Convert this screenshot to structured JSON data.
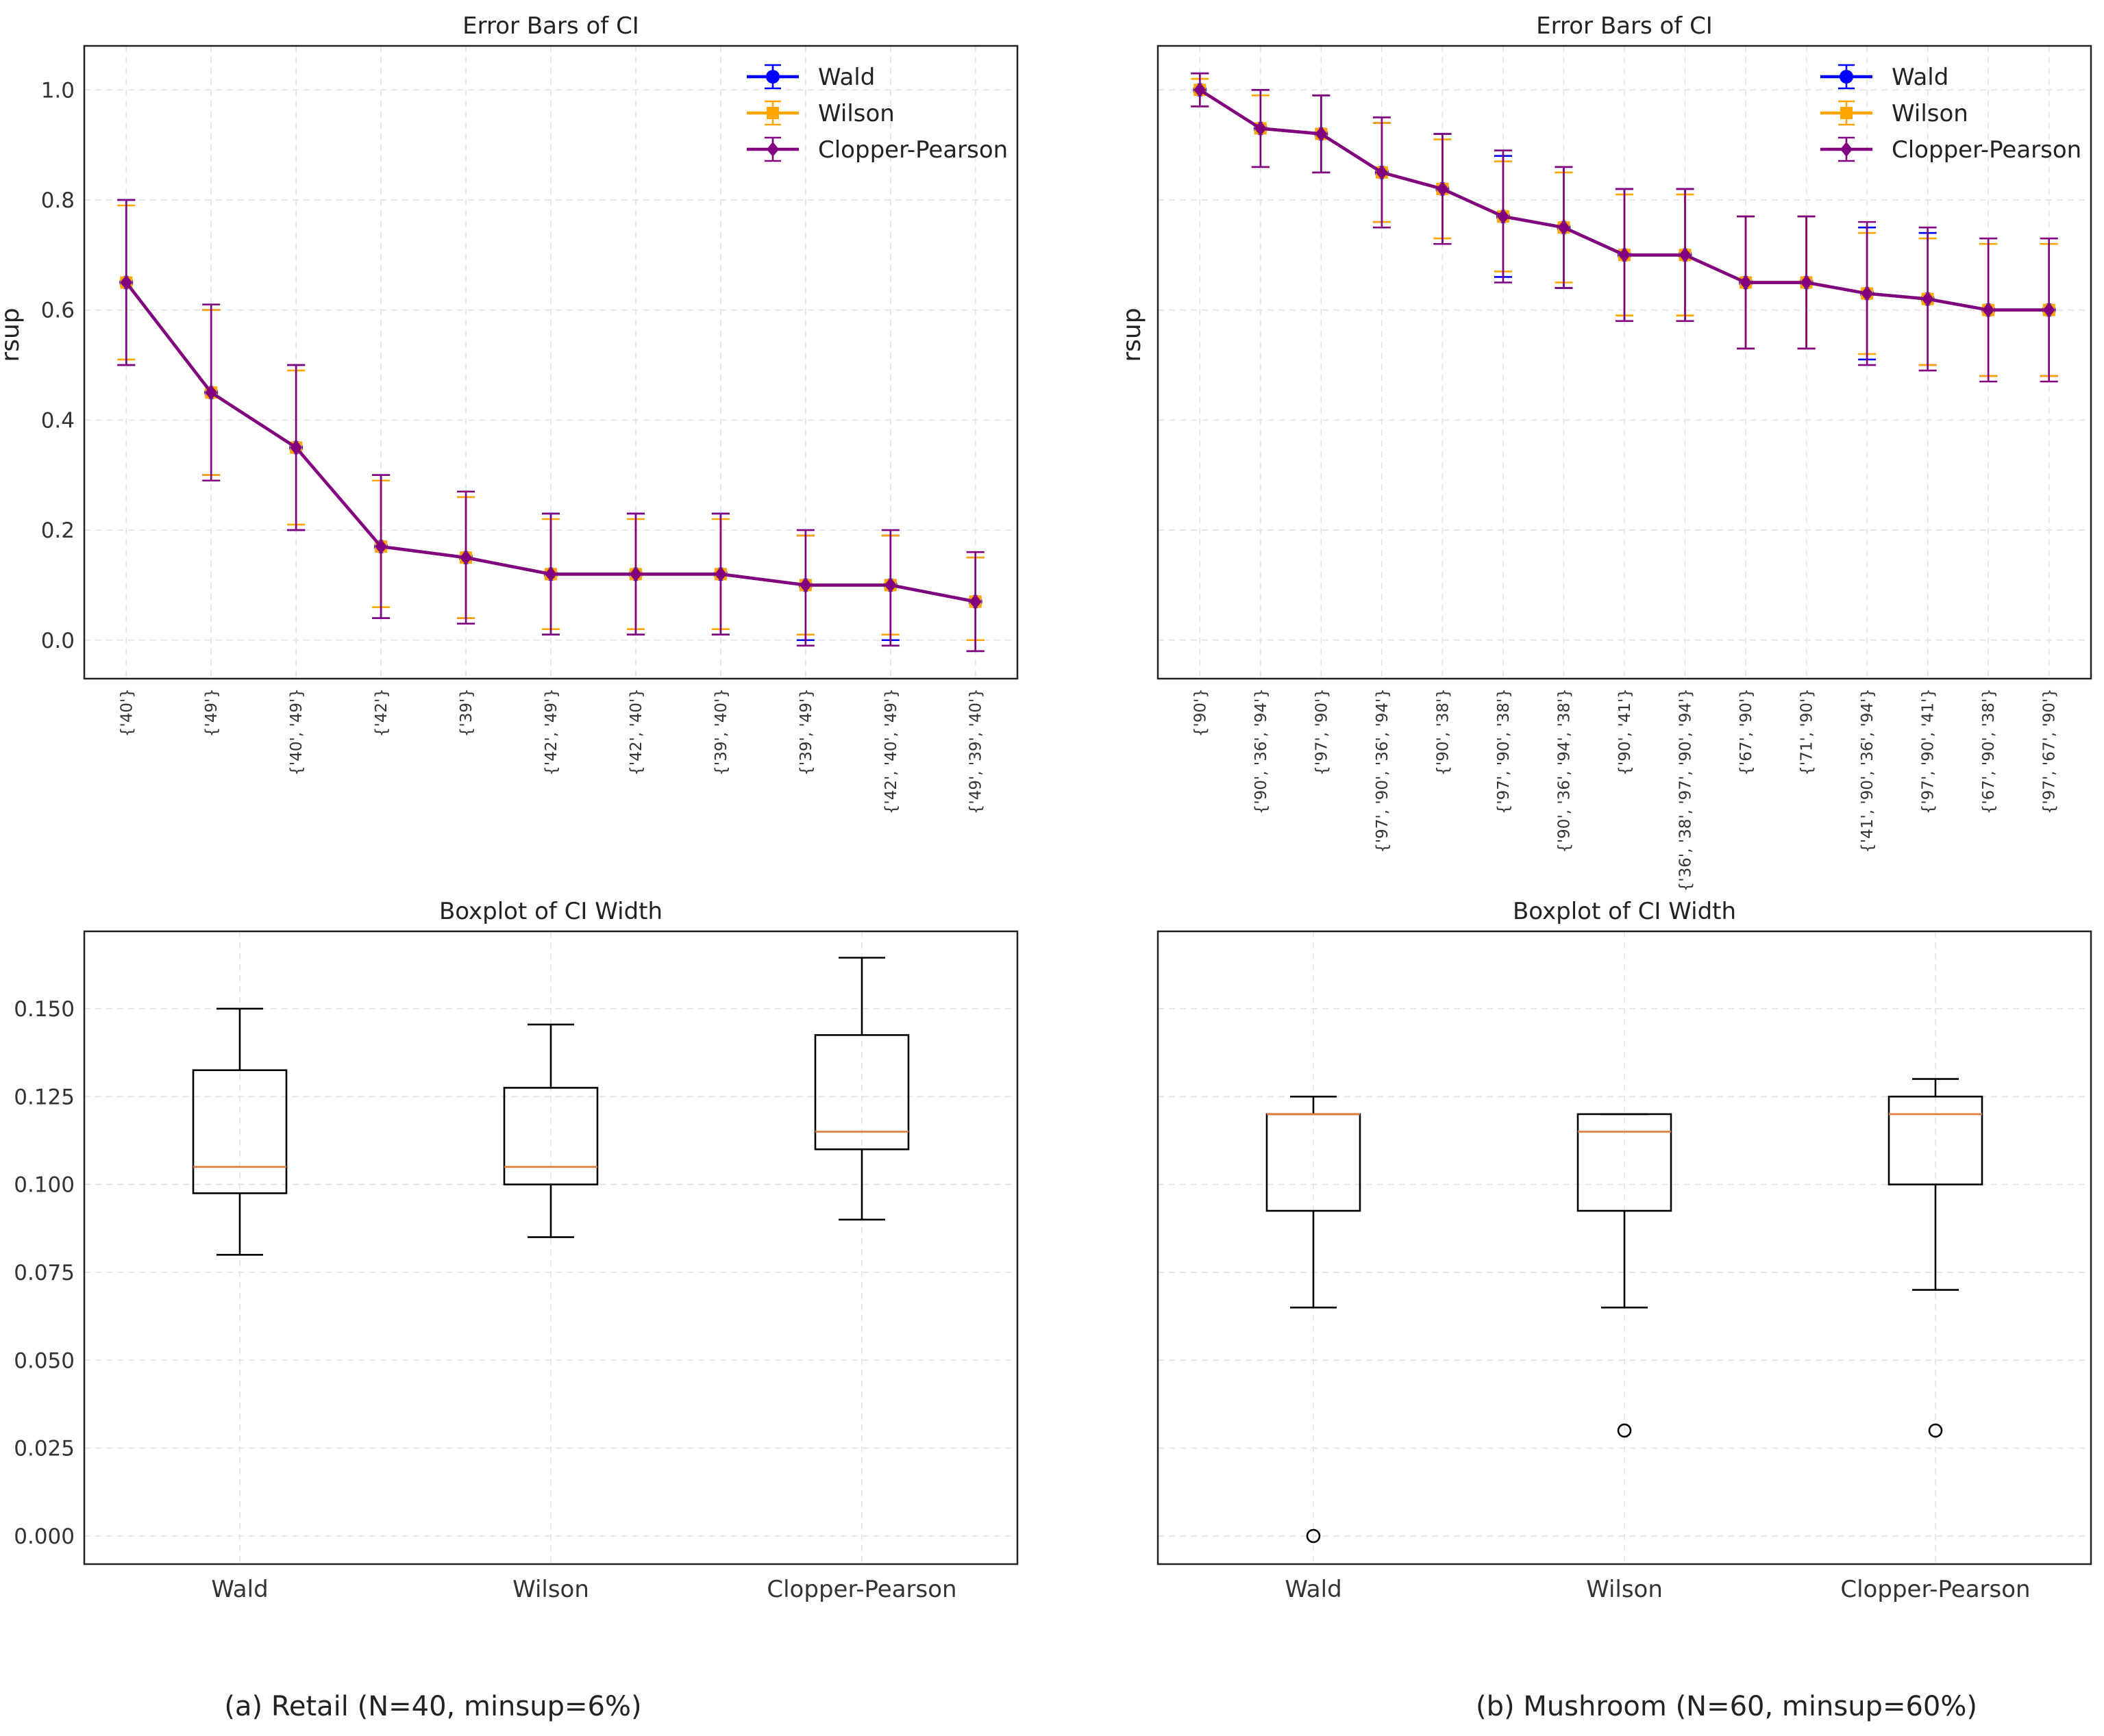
{
  "colors": {
    "wald": "#0000ff",
    "wilson": "#ffa500",
    "cp": "#800080",
    "median": "#e07b39",
    "box": "#000000"
  },
  "chart_data": [
    {
      "type": "line",
      "title": "Error Bars of CI",
      "ylabel": "rsup",
      "xlabel": "",
      "ylim": [
        -0.07,
        1.08
      ],
      "yticks": [
        "0.0",
        "0.2",
        "0.4",
        "0.6",
        "0.8",
        "1.0"
      ],
      "show_yticks": true,
      "grid": true,
      "legend": "top-right",
      "categories": [
        "{'40'}",
        "{'49'}",
        "{'40', '49'}",
        "{'42'}",
        "{'39'}",
        "{'42', '49'}",
        "{'42', '40'}",
        "{'39', '40'}",
        "{'39', '49'}",
        "{'42', '40', '49'}",
        "{'49', '39', '40'}"
      ],
      "series": [
        {
          "name": "Wald",
          "values": [
            0.65,
            0.45,
            0.35,
            0.17,
            0.15,
            0.12,
            0.12,
            0.12,
            0.1,
            0.1,
            0.07
          ],
          "lower": [
            0.5,
            0.3,
            0.2,
            0.04,
            0.04,
            0.01,
            0.01,
            0.01,
            0.0,
            0.0,
            -0.02
          ],
          "upper": [
            0.8,
            0.6,
            0.5,
            0.3,
            0.26,
            0.23,
            0.23,
            0.23,
            0.19,
            0.19,
            0.15
          ]
        },
        {
          "name": "Wilson",
          "values": [
            0.65,
            0.45,
            0.35,
            0.17,
            0.15,
            0.12,
            0.12,
            0.12,
            0.1,
            0.1,
            0.07
          ],
          "lower": [
            0.51,
            0.3,
            0.21,
            0.06,
            0.04,
            0.02,
            0.02,
            0.02,
            0.01,
            0.01,
            0.0
          ],
          "upper": [
            0.79,
            0.6,
            0.49,
            0.29,
            0.26,
            0.22,
            0.22,
            0.22,
            0.19,
            0.19,
            0.15
          ]
        },
        {
          "name": "Clopper-Pearson",
          "values": [
            0.65,
            0.45,
            0.35,
            0.17,
            0.15,
            0.12,
            0.12,
            0.12,
            0.1,
            0.1,
            0.07
          ],
          "lower": [
            0.5,
            0.29,
            0.2,
            0.04,
            0.03,
            0.01,
            0.01,
            0.01,
            -0.01,
            -0.01,
            -0.02
          ],
          "upper": [
            0.8,
            0.61,
            0.5,
            0.3,
            0.27,
            0.23,
            0.23,
            0.23,
            0.2,
            0.2,
            0.16
          ]
        }
      ]
    },
    {
      "type": "line",
      "title": "Error Bars of CI",
      "ylabel": "rsup",
      "xlabel": "",
      "ylim": [
        -0.07,
        1.08
      ],
      "yticks": [],
      "show_yticks": false,
      "grid": true,
      "legend": "top-right",
      "categories": [
        "{'90'}",
        "{'90', '36', '94'}",
        "{'97', '90'}",
        "{'97', '90', '36', '94'}",
        "{'90', '38'}",
        "{'97', '90', '38'}",
        "{'90', '36', '94', '38'}",
        "{'90', '41'}",
        "{'36', '38', '97', '90', '94'}",
        "{'67', '90'}",
        "{'71', '90'}",
        "{'41', '90', '36', '94'}",
        "{'97', '90', '41'}",
        "{'67', '90', '38'}",
        "{'97', '67', '90'}"
      ],
      "series": [
        {
          "name": "Wald",
          "values": [
            1.0,
            0.93,
            0.92,
            0.85,
            0.82,
            0.77,
            0.75,
            0.7,
            0.7,
            0.65,
            0.65,
            0.63,
            0.62,
            0.6,
            0.6
          ],
          "lower": [
            0.97,
            0.86,
            0.85,
            0.76,
            0.72,
            0.66,
            0.64,
            0.58,
            0.58,
            0.53,
            0.53,
            0.51,
            0.5,
            0.48,
            0.48
          ],
          "upper": [
            1.03,
            1.0,
            0.99,
            0.94,
            0.92,
            0.88,
            0.86,
            0.82,
            0.82,
            0.77,
            0.77,
            0.75,
            0.74,
            0.72,
            0.72
          ]
        },
        {
          "name": "Wilson",
          "values": [
            1.0,
            0.93,
            0.92,
            0.85,
            0.82,
            0.77,
            0.75,
            0.7,
            0.7,
            0.65,
            0.65,
            0.63,
            0.62,
            0.6,
            0.6
          ],
          "lower": [
            0.97,
            0.86,
            0.85,
            0.76,
            0.73,
            0.67,
            0.65,
            0.59,
            0.59,
            0.53,
            0.53,
            0.52,
            0.5,
            0.48,
            0.48
          ],
          "upper": [
            1.02,
            0.99,
            0.99,
            0.94,
            0.91,
            0.87,
            0.85,
            0.81,
            0.81,
            0.77,
            0.77,
            0.74,
            0.73,
            0.72,
            0.72
          ]
        },
        {
          "name": "Clopper-Pearson",
          "values": [
            1.0,
            0.93,
            0.92,
            0.85,
            0.82,
            0.77,
            0.75,
            0.7,
            0.7,
            0.65,
            0.65,
            0.63,
            0.62,
            0.6,
            0.6
          ],
          "lower": [
            0.97,
            0.86,
            0.85,
            0.75,
            0.72,
            0.65,
            0.64,
            0.58,
            0.58,
            0.53,
            0.53,
            0.5,
            0.49,
            0.47,
            0.47
          ],
          "upper": [
            1.03,
            1.0,
            0.99,
            0.95,
            0.92,
            0.89,
            0.86,
            0.82,
            0.82,
            0.77,
            0.77,
            0.76,
            0.75,
            0.73,
            0.73
          ]
        }
      ]
    },
    {
      "type": "box",
      "title": "Boxplot of CI Width",
      "xlabel": "",
      "ylabel": "",
      "ylim": [
        -0.008,
        0.172
      ],
      "yticks": [
        "0.000",
        "0.025",
        "0.050",
        "0.075",
        "0.100",
        "0.125",
        "0.150"
      ],
      "show_yticks": true,
      "grid": true,
      "categories": [
        "Wald",
        "Wilson",
        "Clopper-Pearson"
      ],
      "boxes": [
        {
          "name": "Wald",
          "whislo": 0.08,
          "q1": 0.0975,
          "med": 0.105,
          "q3": 0.1325,
          "whishi": 0.15,
          "fliers": []
        },
        {
          "name": "Wilson",
          "whislo": 0.085,
          "q1": 0.1,
          "med": 0.105,
          "q3": 0.1275,
          "whishi": 0.1455,
          "fliers": []
        },
        {
          "name": "Clopper-Pearson",
          "whislo": 0.09,
          "q1": 0.11,
          "med": 0.115,
          "q3": 0.1425,
          "whishi": 0.1645,
          "fliers": []
        }
      ]
    },
    {
      "type": "box",
      "title": "Boxplot of CI Width",
      "xlabel": "",
      "ylabel": "",
      "ylim": [
        -0.008,
        0.172
      ],
      "yticks": [],
      "show_yticks": false,
      "grid": true,
      "categories": [
        "Wald",
        "Wilson",
        "Clopper-Pearson"
      ],
      "boxes": [
        {
          "name": "Wald",
          "whislo": 0.065,
          "q1": 0.0925,
          "med": 0.12,
          "q3": 0.12,
          "whishi": 0.125,
          "fliers": [
            0.0
          ]
        },
        {
          "name": "Wilson",
          "whislo": 0.065,
          "q1": 0.0925,
          "med": 0.115,
          "q3": 0.12,
          "whishi": 0.12,
          "fliers": [
            0.03
          ]
        },
        {
          "name": "Clopper-Pearson",
          "whislo": 0.07,
          "q1": 0.1,
          "med": 0.12,
          "q3": 0.125,
          "whishi": 0.13,
          "fliers": [
            0.03
          ]
        }
      ]
    }
  ],
  "captions": {
    "left": "(a) Retail (N=40, minsup=6%)",
    "right": "(b) Mushroom (N=60, minsup=60%)"
  }
}
